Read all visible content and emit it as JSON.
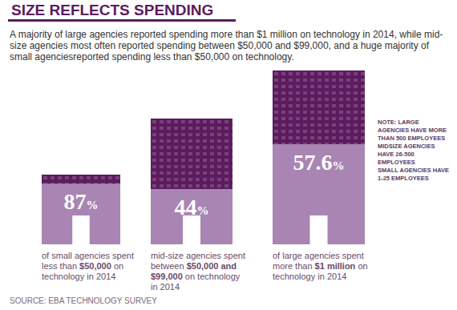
{
  "title": "SIZE REFLECTS SPENDING",
  "subtitle": "A majority of large agencies reported spending more than $1 million on technology in 2014, while mid-size agencies most often reported spending between $50,000 and $99,000, and a huge majority of small agenciesreported spending less than $50,000 on technology.",
  "note": [
    "NOTE: LARGE AGENCIES HAVE MORE THAN 500 EMPLOYEES",
    "MIDSIZE AGENCIES HAVE 26-500 EMPLOYEES",
    "SMALL AGENCIES HAVE 1-25 EMPLOYEES"
  ],
  "source": "SOURCE: EBA TECHNOLOGY SURVEY",
  "chart_data": [
    {
      "type": "bar",
      "categories": [
        "of small agencies spent less than $50,000 on technology in 2014"
      ],
      "values": [
        87
      ],
      "value_labels": [
        "87%"
      ],
      "ylim": [
        0,
        100
      ],
      "data_labels": true,
      "tick_labels": "x",
      "color": "#a985b3"
    },
    {
      "type": "bar",
      "categories": [
        "mid-size agencies spent between $50,000 and $99,000 on technology in 2014"
      ],
      "values": [
        44
      ],
      "value_labels": [
        "44%"
      ],
      "ylim": [
        0,
        100
      ],
      "data_labels": true,
      "tick_labels": "x",
      "color": "#a985b3"
    },
    {
      "type": "bar",
      "categories": [
        "of large agencies spent more than $1 million on technology in 2014"
      ],
      "values": [
        57.6
      ],
      "value_labels": [
        "57.6%"
      ],
      "ylim": [
        0,
        100
      ],
      "data_labels": true,
      "tick_labels": "x",
      "color": "#a985b3"
    }
  ]
}
